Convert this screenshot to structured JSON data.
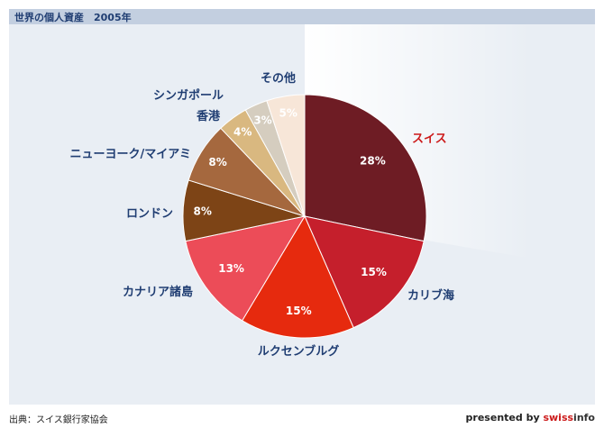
{
  "header": {
    "title": "世界の個人資産　2005年"
  },
  "footer": {
    "source": "出典：スイス銀行家協会",
    "presented_by": "presented by",
    "brand_part1": "swiss",
    "brand_part2": "info"
  },
  "chart_data": {
    "type": "pie",
    "title": "世界の個人資産　2005年",
    "start_angle_deg": 0,
    "direction": "clockwise",
    "slices": [
      {
        "label": "スイス",
        "value": 28,
        "value_label": "28%",
        "color": "#6e1c24",
        "label_color": "#cc1a1a",
        "exploded": true
      },
      {
        "label": "カリブ海",
        "value": 15,
        "value_label": "15%",
        "color": "#c51f2c",
        "label_color": "#1f3d72"
      },
      {
        "label": "ルクセンブルグ",
        "value": 15,
        "value_label": "15%",
        "color": "#e62a0e",
        "label_color": "#1f3d72"
      },
      {
        "label": "カナリア諸島",
        "value": 13,
        "value_label": "13%",
        "color": "#ec4c58",
        "label_color": "#1f3d72"
      },
      {
        "label": "ロンドン",
        "value": 8,
        "value_label": "8%",
        "color": "#7d4416",
        "label_color": "#1f3d72"
      },
      {
        "label": "ニューヨーク/マイアミ",
        "value": 8,
        "value_label": "8%",
        "color": "#a5683e",
        "label_color": "#1f3d72"
      },
      {
        "label": "香港",
        "value": 4,
        "value_label": "4%",
        "color": "#d9b880",
        "label_color": "#1f3d72"
      },
      {
        "label": "シンガポール",
        "value": 3,
        "value_label": "3%",
        "color": "#d5cdbf",
        "label_color": "#1f3d72"
      },
      {
        "label": "その他",
        "value": 5,
        "value_label": "5%",
        "color": "#f7e6d8",
        "label_color": "#1f3d72"
      }
    ]
  }
}
